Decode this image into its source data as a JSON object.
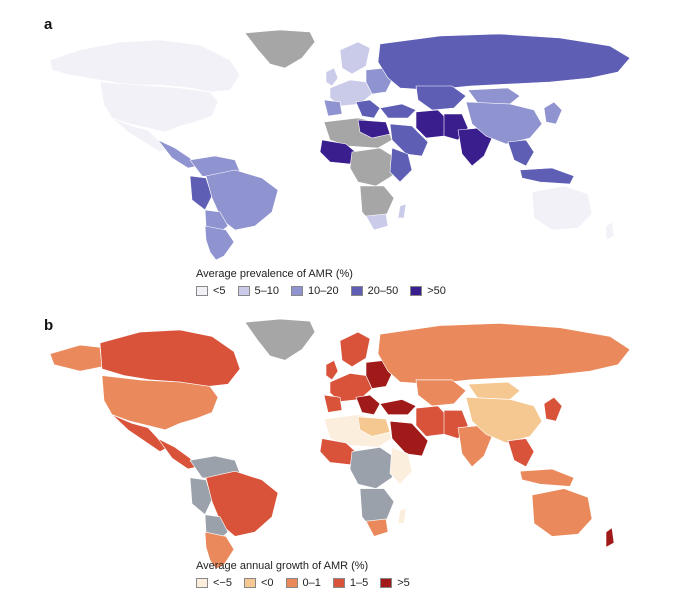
{
  "panel_a": {
    "letter": "a",
    "legend_title": "Average prevalence of AMR (%)",
    "no_data_color": "#a6a6a6",
    "ice_color": "#a6a6a6",
    "bins": [
      {
        "label": "<5",
        "color": "#f1f1f7"
      },
      {
        "label": "5–10",
        "color": "#c9cbe8"
      },
      {
        "label": "10–20",
        "color": "#8f93d0"
      },
      {
        "label": "20–50",
        "color": "#5e5eb5"
      },
      {
        "label": ">50",
        "color": "#3b1e8e"
      }
    ]
  },
  "panel_b": {
    "letter": "b",
    "legend_title": "Average annual growth of AMR (%)",
    "no_data_color": "#9aa1ab",
    "ice_color": "#a6a6a6",
    "bins": [
      {
        "label": "<−5",
        "color": "#fbeedd"
      },
      {
        "label": "<0",
        "color": "#f5c891"
      },
      {
        "label": "0–1",
        "color": "#ea8a5c"
      },
      {
        "label": "1–5",
        "color": "#d9533b"
      },
      {
        "label": ">5",
        "color": "#a11a1a"
      }
    ]
  }
}
